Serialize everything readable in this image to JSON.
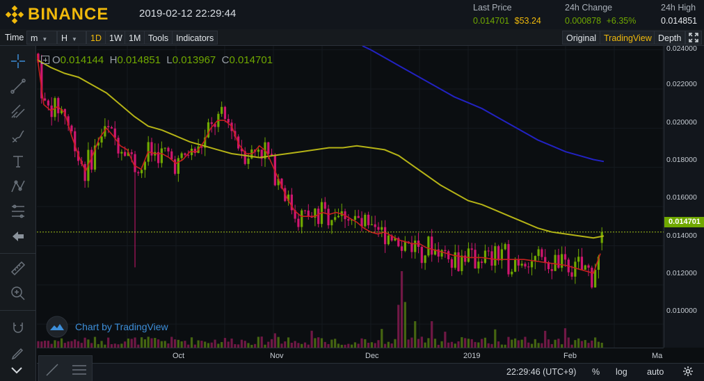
{
  "header": {
    "brand": "BINANCE",
    "datetime": "2019-02-12 22:29:44",
    "last_price": {
      "label": "Last Price",
      "value": "0.014701",
      "usd": "$53.24"
    },
    "change_24h": {
      "label": "24h Change",
      "value": "0.000878",
      "percent": "+6.35%"
    },
    "high_24h": {
      "label": "24h High",
      "value": "0.014851"
    }
  },
  "toolbar": {
    "time": "Time",
    "minute": "m",
    "hour": "H",
    "intervals": [
      "1D",
      "1W",
      "1M"
    ],
    "active_interval": "1D",
    "tools": "Tools",
    "indicators": "Indicators",
    "original": "Original",
    "tradingview": "TradingView",
    "depth": "Depth"
  },
  "ohlc": {
    "o_label": "O",
    "o": "0.014144",
    "h_label": "H",
    "h": "0.014851",
    "l_label": "L",
    "l": "0.013967",
    "c_label": "C",
    "c": "0.014701"
  },
  "credit": "Chart by TradingView",
  "bottom": {
    "clock": "22:29:46 (UTC+9)",
    "percent": "%",
    "log": "log",
    "auto": "auto"
  },
  "colors": {
    "up": "#70a800",
    "down": "#d0166f",
    "ma_short": "#c8201f",
    "ma_mid": "#b5b316",
    "ma_long": "#2222c2",
    "accent": "#f0b90b"
  },
  "chart_data": {
    "type": "candlestick",
    "price_ticks": [
      "0.024000",
      "0.022000",
      "0.020000",
      "0.018000",
      "0.016000",
      "0.014000",
      "0.012000",
      "0.010000"
    ],
    "last_price_label": "0.014701",
    "time_ticks": [
      "Oct",
      "Nov",
      "Dec",
      "2019",
      "Feb",
      "Ma"
    ],
    "ylim": [
      0.0088,
      0.0242
    ],
    "last_price": 0.014701,
    "candle_count": 170,
    "ma_short": [
      [
        0,
        0.0238
      ],
      [
        10,
        0.0212
      ],
      [
        20,
        0.0209
      ],
      [
        30,
        0.0211
      ],
      [
        40,
        0.0208
      ],
      [
        50,
        0.0196
      ],
      [
        60,
        0.0186
      ],
      [
        70,
        0.0178
      ],
      [
        80,
        0.0186
      ],
      [
        90,
        0.0195
      ],
      [
        100,
        0.02
      ],
      [
        110,
        0.0196
      ],
      [
        120,
        0.0191
      ],
      [
        130,
        0.0189
      ],
      [
        140,
        0.0181
      ],
      [
        150,
        0.0179
      ],
      [
        160,
        0.0188
      ],
      [
        170,
        0.0187
      ],
      [
        180,
        0.0187
      ],
      [
        190,
        0.0185
      ],
      [
        200,
        0.0182
      ],
      [
        210,
        0.0184
      ],
      [
        220,
        0.0188
      ],
      [
        230,
        0.0188
      ],
      [
        240,
        0.0193
      ],
      [
        250,
        0.02
      ],
      [
        260,
        0.0204
      ],
      [
        270,
        0.0204
      ],
      [
        280,
        0.0201
      ],
      [
        290,
        0.0192
      ],
      [
        300,
        0.0187
      ],
      [
        310,
        0.0187
      ],
      [
        320,
        0.0191
      ],
      [
        330,
        0.0188
      ],
      [
        340,
        0.018
      ],
      [
        350,
        0.0172
      ],
      [
        360,
        0.0164
      ],
      [
        370,
        0.0158
      ],
      [
        380,
        0.0155
      ],
      [
        390,
        0.0155
      ],
      [
        400,
        0.0155
      ],
      [
        410,
        0.0157
      ],
      [
        420,
        0.0156
      ],
      [
        430,
        0.0157
      ],
      [
        440,
        0.0156
      ],
      [
        450,
        0.0154
      ],
      [
        460,
        0.0152
      ],
      [
        470,
        0.0149
      ],
      [
        480,
        0.0147
      ],
      [
        490,
        0.0146
      ],
      [
        500,
        0.0147
      ],
      [
        510,
        0.0145
      ],
      [
        520,
        0.0143
      ],
      [
        530,
        0.0142
      ],
      [
        540,
        0.0141
      ],
      [
        550,
        0.0141
      ],
      [
        560,
        0.0139
      ],
      [
        570,
        0.0138
      ],
      [
        580,
        0.0137
      ],
      [
        590,
        0.0136
      ],
      [
        600,
        0.0135
      ],
      [
        620,
        0.0134
      ],
      [
        640,
        0.0134
      ],
      [
        660,
        0.0133
      ],
      [
        680,
        0.0133
      ],
      [
        700,
        0.0133
      ],
      [
        720,
        0.0132
      ],
      [
        740,
        0.0131
      ],
      [
        760,
        0.013
      ],
      [
        780,
        0.0128
      ],
      [
        800,
        0.0126
      ],
      [
        810,
        0.0136
      ]
    ],
    "ma_mid": [
      [
        0,
        0.0235
      ],
      [
        20,
        0.0231
      ],
      [
        40,
        0.0228
      ],
      [
        60,
        0.0226
      ],
      [
        80,
        0.0222
      ],
      [
        100,
        0.0218
      ],
      [
        120,
        0.0212
      ],
      [
        140,
        0.0206
      ],
      [
        160,
        0.0201
      ],
      [
        180,
        0.0199
      ],
      [
        200,
        0.0196
      ],
      [
        220,
        0.0193
      ],
      [
        240,
        0.0191
      ],
      [
        260,
        0.0189
      ],
      [
        280,
        0.0187
      ],
      [
        300,
        0.0186
      ],
      [
        320,
        0.0185
      ],
      [
        340,
        0.0186
      ],
      [
        360,
        0.0187
      ],
      [
        380,
        0.0188
      ],
      [
        400,
        0.0189
      ],
      [
        420,
        0.019
      ],
      [
        440,
        0.019
      ],
      [
        460,
        0.0191
      ],
      [
        480,
        0.019
      ],
      [
        500,
        0.0189
      ],
      [
        520,
        0.0186
      ],
      [
        540,
        0.0181
      ],
      [
        560,
        0.0176
      ],
      [
        580,
        0.0171
      ],
      [
        600,
        0.0167
      ],
      [
        620,
        0.0163
      ],
      [
        640,
        0.0161
      ],
      [
        660,
        0.0158
      ],
      [
        680,
        0.0155
      ],
      [
        700,
        0.0152
      ],
      [
        720,
        0.0149
      ],
      [
        740,
        0.0147
      ],
      [
        760,
        0.0146
      ],
      [
        780,
        0.0145
      ],
      [
        800,
        0.0144
      ],
      [
        815,
        0.0145
      ]
    ],
    "ma_long": [
      [
        468,
        0.0242
      ],
      [
        480,
        0.024
      ],
      [
        500,
        0.0236
      ],
      [
        520,
        0.0232
      ],
      [
        540,
        0.0228
      ],
      [
        560,
        0.0224
      ],
      [
        580,
        0.022
      ],
      [
        600,
        0.0216
      ],
      [
        620,
        0.0213
      ],
      [
        640,
        0.021
      ],
      [
        660,
        0.0206
      ],
      [
        680,
        0.0202
      ],
      [
        700,
        0.0198
      ],
      [
        720,
        0.0194
      ],
      [
        740,
        0.0191
      ],
      [
        760,
        0.0188
      ],
      [
        780,
        0.0186
      ],
      [
        800,
        0.0184
      ],
      [
        815,
        0.0183
      ]
    ]
  }
}
